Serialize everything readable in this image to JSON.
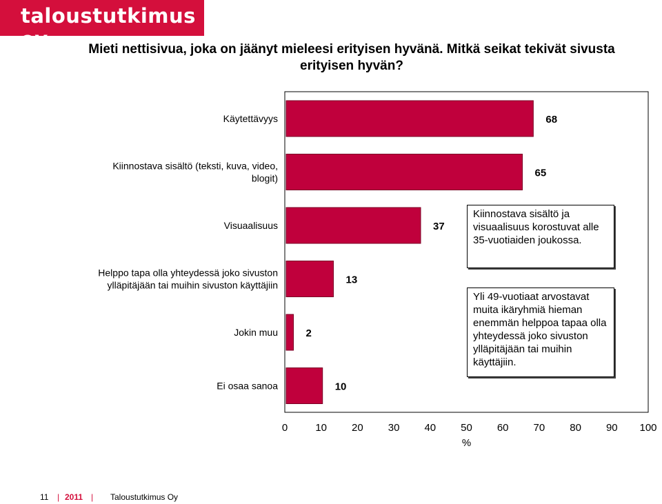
{
  "logo": {
    "text": "taloustutkimus oy",
    "background": "#d40f3c"
  },
  "chart_data": {
    "type": "bar",
    "orientation": "horizontal",
    "title": "Mieti nettisivua, joka on jäänyt mieleesi erityisen hyvänä. Mitkä seikat tekivät sivusta erityisen hyvän?",
    "categories": [
      "Käytettävyys",
      "Kiinnostava sisältö (teksti, kuva, video, blogit)",
      "Visuaalisuus",
      "Helppo tapa olla yhteydessä joko sivuston ylläpitäjään tai muihin sivuston käyttäjiin",
      "Jokin muu",
      "Ei osaa sanoa"
    ],
    "values": [
      68,
      65,
      37,
      13,
      2,
      10
    ],
    "xlabel": "%",
    "xlim": [
      0,
      100
    ],
    "xticks": [
      0,
      10,
      20,
      30,
      40,
      50,
      60,
      70,
      80,
      90,
      100
    ],
    "bar_color": "#c0003c",
    "grid": false
  },
  "notes": [
    "Kiinnostava sisältö ja visuaalisuus korostuvat alle 35-vuotiaiden joukossa.",
    "Yli 49-vuotiaat arvostavat muita ikäryhmiä hieman enemmän helppoa tapaa olla yhteydessä joko sivuston ylläpitäjään tai muihin käyttäjiin."
  ],
  "footer": {
    "page": "11",
    "year": "2011",
    "company": "Taloustutkimus Oy",
    "separator": "|"
  }
}
